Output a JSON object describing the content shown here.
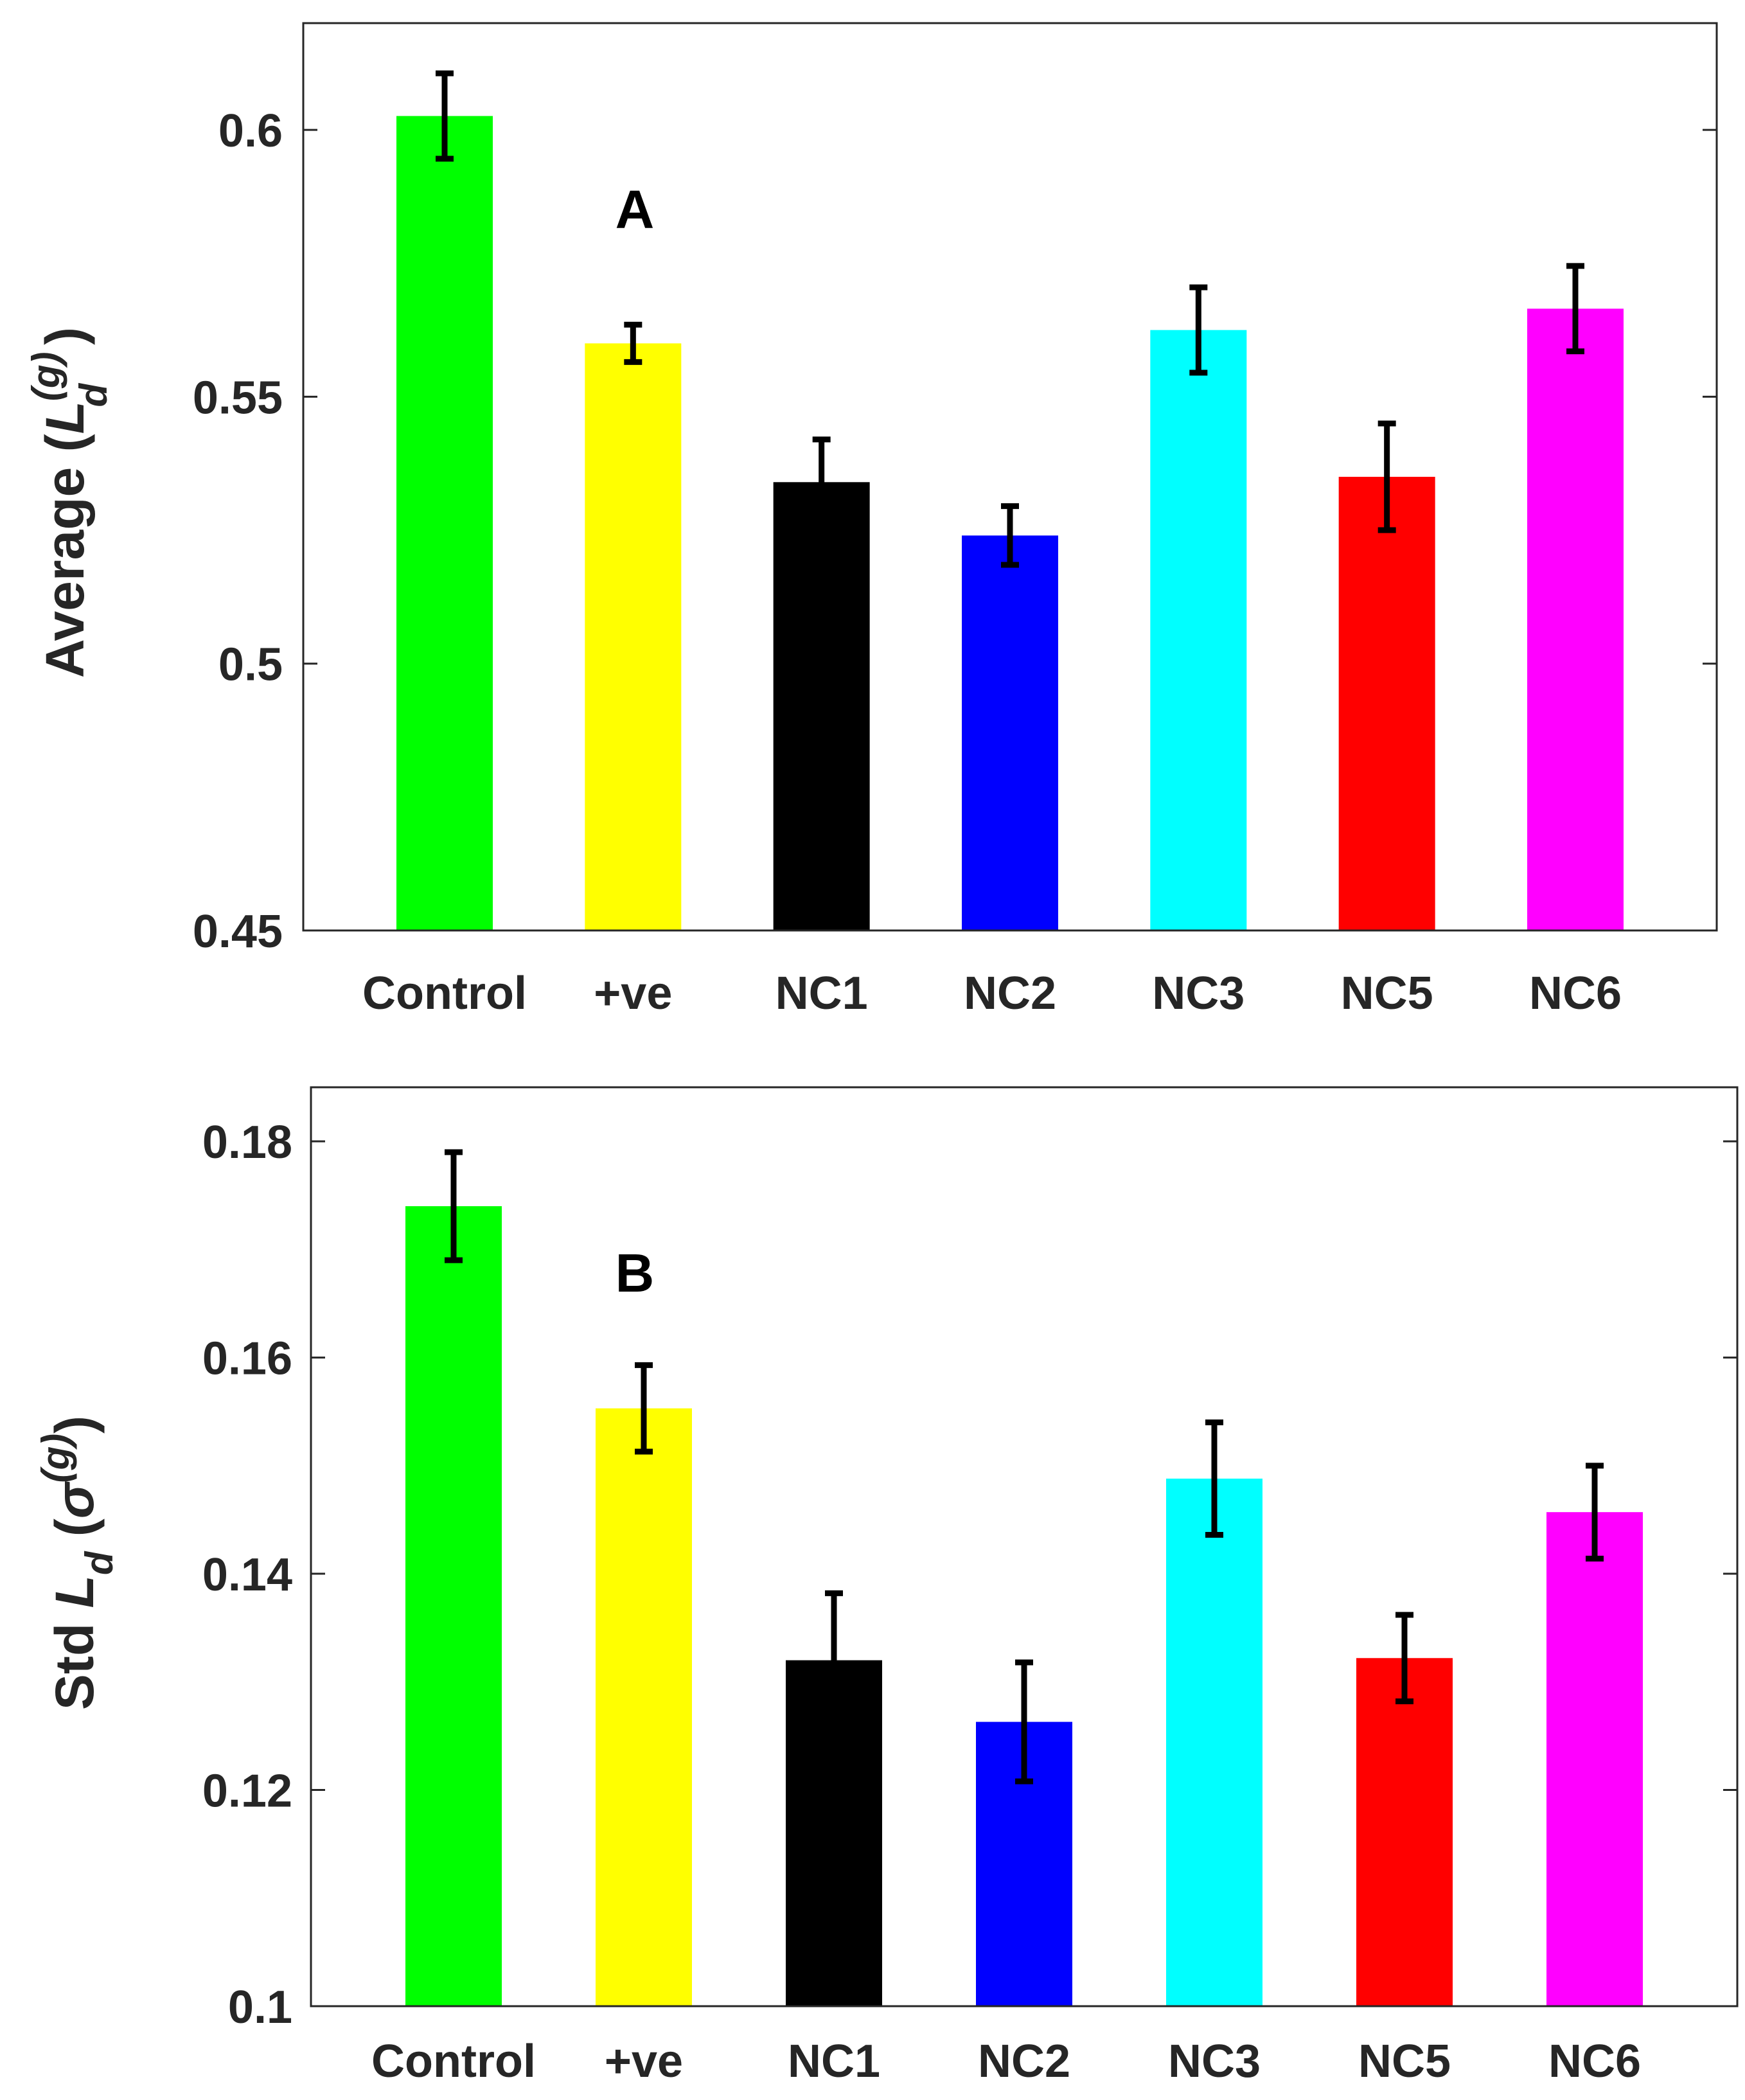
{
  "chart_data": [
    {
      "type": "bar",
      "panel_label": "A",
      "categories": [
        "Control",
        "+ve",
        "NC1",
        "NC2",
        "NC3",
        "NC5",
        "NC6"
      ],
      "values": [
        0.6026,
        0.56,
        0.534,
        0.524,
        0.5625,
        0.535,
        0.5665
      ],
      "errors": [
        0.008,
        0.0035,
        0.008,
        0.0055,
        0.008,
        0.01,
        0.008
      ],
      "colors": [
        "#00ff00",
        "#ffff00",
        "#000000",
        "#0000ff",
        "#00ffff",
        "#ff0000",
        "#ff00ff"
      ],
      "ylabel": {
        "main": "Average (",
        "symbol": "L",
        "sup": "(g)",
        "sub": "d",
        "close": ")"
      },
      "ylim": [
        0.45,
        0.62
      ],
      "yticks": [
        0.45,
        0.5,
        0.55,
        0.6
      ],
      "ytick_labels": [
        "0.45",
        "0.5",
        "0.55",
        "0.6"
      ],
      "grid": false
    },
    {
      "type": "bar",
      "panel_label": "B",
      "categories": [
        "Control",
        "+ve",
        "NC1",
        "NC2",
        "NC3",
        "NC5",
        "NC6"
      ],
      "values": [
        0.174,
        0.1553,
        0.132,
        0.1263,
        0.1488,
        0.1322,
        0.1457
      ],
      "errors": [
        0.005,
        0.004,
        0.0062,
        0.0055,
        0.0052,
        0.004,
        0.0043
      ],
      "colors": [
        "#00ff00",
        "#ffff00",
        "#000000",
        "#0000ff",
        "#00ffff",
        "#ff0000",
        "#ff00ff"
      ],
      "ylabel": {
        "main": "Std ",
        "symbol": "L",
        "sub": "d",
        "paren": " (",
        "sigma": "σ",
        "sup": "(g)",
        "close": ")"
      },
      "ylim": [
        0.1,
        0.185
      ],
      "yticks": [
        0.1,
        0.12,
        0.14,
        0.16,
        0.18
      ],
      "ytick_labels": [
        "0.1",
        "0.12",
        "0.14",
        "0.16",
        "0.18"
      ],
      "grid": false
    }
  ]
}
